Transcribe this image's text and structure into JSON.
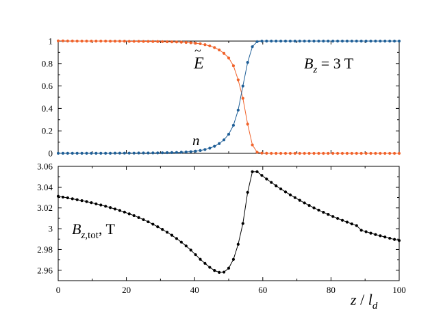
{
  "chart_data": [
    {
      "type": "line",
      "annotation": "B_z = 3 T",
      "xlim": [
        0,
        100
      ],
      "ylim": [
        0,
        1
      ],
      "yticks": [
        "0",
        "0.2",
        "0.4",
        "0.6",
        "0.8",
        "1"
      ],
      "grid": false,
      "series": [
        {
          "name": "Ẽ",
          "color": "#f0622a",
          "x": [
            0,
            1.389,
            2.778,
            4.167,
            5.556,
            6.944,
            8.333,
            9.722,
            11.111,
            12.5,
            13.889,
            15.278,
            16.667,
            18.056,
            19.444,
            20.833,
            22.222,
            23.611,
            25,
            26.389,
            27.778,
            29.167,
            30.556,
            31.944,
            33.333,
            34.722,
            36.111,
            37.5,
            38.889,
            40.278,
            41.667,
            43.056,
            44.444,
            45.833,
            47.222,
            48.611,
            50,
            51.389,
            52.778,
            54.167,
            55.556,
            56.944,
            58.333,
            59.722,
            61.111,
            62.5,
            63.889,
            65.278,
            66.667,
            68.056,
            69.444,
            70.833,
            72.222,
            73.611,
            75,
            76.389,
            77.778,
            79.167,
            80.556,
            81.944,
            83.333,
            84.722,
            86.111,
            87.5,
            88.889,
            90.278,
            91.667,
            93.056,
            94.444,
            95.833,
            97.222,
            98.611,
            100
          ],
          "y": [
            1.002,
            1.002,
            1.001,
            1.001,
            1.0,
            1.0,
            1.0,
            1.0,
            1.0,
            1.0,
            1.0,
            0.999,
            0.999,
            0.999,
            0.999,
            0.998,
            0.998,
            0.998,
            0.997,
            0.997,
            0.996,
            0.996,
            0.995,
            0.994,
            0.993,
            0.992,
            0.99,
            0.988,
            0.985,
            0.981,
            0.976,
            0.968,
            0.957,
            0.942,
            0.921,
            0.891,
            0.85,
            0.78,
            0.655,
            0.49,
            0.26,
            0.075,
            0.01,
            0.002,
            0.001,
            0,
            0,
            0,
            0,
            0,
            0,
            0,
            0,
            0,
            0,
            0,
            0,
            0,
            0,
            0,
            0,
            0,
            0,
            0,
            0,
            0,
            0,
            0,
            0,
            0,
            0,
            0,
            0
          ]
        },
        {
          "name": "n",
          "color": "#1f5f97",
          "x": [
            0,
            1.389,
            2.778,
            4.167,
            5.556,
            6.944,
            8.333,
            9.722,
            11.111,
            12.5,
            13.889,
            15.278,
            16.667,
            18.056,
            19.444,
            20.833,
            22.222,
            23.611,
            25,
            26.389,
            27.778,
            29.167,
            30.556,
            31.944,
            33.333,
            34.722,
            36.111,
            37.5,
            38.889,
            40.278,
            41.667,
            43.056,
            44.444,
            45.833,
            47.222,
            48.611,
            50,
            51.389,
            52.778,
            54.167,
            55.556,
            56.944,
            58.333,
            59.722,
            61.111,
            62.5,
            63.889,
            65.278,
            66.667,
            68.056,
            69.444,
            70.833,
            72.222,
            73.611,
            75,
            76.389,
            77.778,
            79.167,
            80.556,
            81.944,
            83.333,
            84.722,
            86.111,
            87.5,
            88.889,
            90.278,
            91.667,
            93.056,
            94.444,
            95.833,
            97.222,
            98.611,
            100
          ],
          "y": [
            0.001,
            0.001,
            0.001,
            0.001,
            0.001,
            0.001,
            0.001,
            0.001,
            0.001,
            0.001,
            0.001,
            0.001,
            0.002,
            0.002,
            0.002,
            0.002,
            0.002,
            0.003,
            0.003,
            0.003,
            0.004,
            0.004,
            0.005,
            0.006,
            0.007,
            0.008,
            0.01,
            0.012,
            0.015,
            0.019,
            0.025,
            0.034,
            0.046,
            0.063,
            0.087,
            0.12,
            0.17,
            0.25,
            0.385,
            0.6,
            0.81,
            0.95,
            0.995,
            1.0,
            1.0,
            1.0,
            1.0,
            1.0,
            1.0,
            1.0,
            1.0,
            1.0,
            1.0,
            1.0,
            1.0,
            1.0,
            1.0,
            1.0,
            1.0,
            1.0,
            1.0,
            1.0,
            1.0,
            1.0,
            1.0,
            1.0,
            1.0,
            1.0,
            1.0,
            1.0,
            1.0,
            1.0,
            1.0
          ]
        }
      ]
    },
    {
      "type": "line",
      "xlabel": "z / l_d",
      "annotation": "B_z,tot, T",
      "xlim": [
        0,
        100
      ],
      "ylim": [
        2.95,
        3.06
      ],
      "xticks": [
        "0",
        "20",
        "40",
        "60",
        "80",
        "100"
      ],
      "yticks": [
        "2.96",
        "2.98",
        "3",
        "3.02",
        "3.04",
        "3.06"
      ],
      "grid": false,
      "series": [
        {
          "color": "#000000",
          "x": [
            0,
            1.389,
            2.778,
            4.167,
            5.556,
            6.944,
            8.333,
            9.722,
            11.111,
            12.5,
            13.889,
            15.278,
            16.667,
            18.056,
            19.444,
            20.833,
            22.222,
            23.611,
            25,
            26.389,
            27.778,
            29.167,
            30.556,
            31.944,
            33.333,
            34.722,
            36.111,
            37.5,
            38.889,
            40.278,
            41.667,
            43.056,
            44.444,
            45.833,
            47.222,
            48.611,
            50,
            51.389,
            52.778,
            54.167,
            55.556,
            56.944,
            58.333,
            59.722,
            61.111,
            62.5,
            63.889,
            65.278,
            66.667,
            68.056,
            69.444,
            70.833,
            72.222,
            73.611,
            75,
            76.389,
            77.778,
            79.167,
            80.556,
            81.944,
            83.333,
            84.722,
            86.111,
            87.5,
            88.889,
            90.278,
            91.667,
            93.056,
            94.444,
            95.833,
            97.222,
            98.611,
            100
          ],
          "y": [
            3.0312,
            3.0304,
            3.0297,
            3.0288,
            3.0279,
            3.027,
            3.0261,
            3.025,
            3.0239,
            3.0228,
            3.0216,
            3.0203,
            3.0189,
            3.0175,
            3.016,
            3.0143,
            3.0126,
            3.0107,
            3.0087,
            3.0066,
            3.0043,
            3.0019,
            2.9993,
            2.9966,
            2.9937,
            2.9905,
            2.9871,
            2.9834,
            2.9794,
            2.975,
            2.9706,
            2.9666,
            2.9628,
            2.9598,
            2.958,
            2.9582,
            2.962,
            2.9705,
            2.985,
            3.005,
            3.035,
            3.0548,
            3.0548,
            3.0513,
            3.0478,
            3.0445,
            3.0413,
            3.0383,
            3.0354,
            3.0326,
            3.0299,
            3.0273,
            3.0248,
            3.0224,
            3.0201,
            3.0179,
            3.0158,
            3.0138,
            3.0118,
            3.0099,
            3.0081,
            3.0063,
            3.0046,
            3.003,
            2.9985,
            2.9971,
            2.9957,
            2.9944,
            2.9932,
            2.992,
            2.9908,
            2.9897,
            2.9886
          ]
        }
      ]
    }
  ]
}
